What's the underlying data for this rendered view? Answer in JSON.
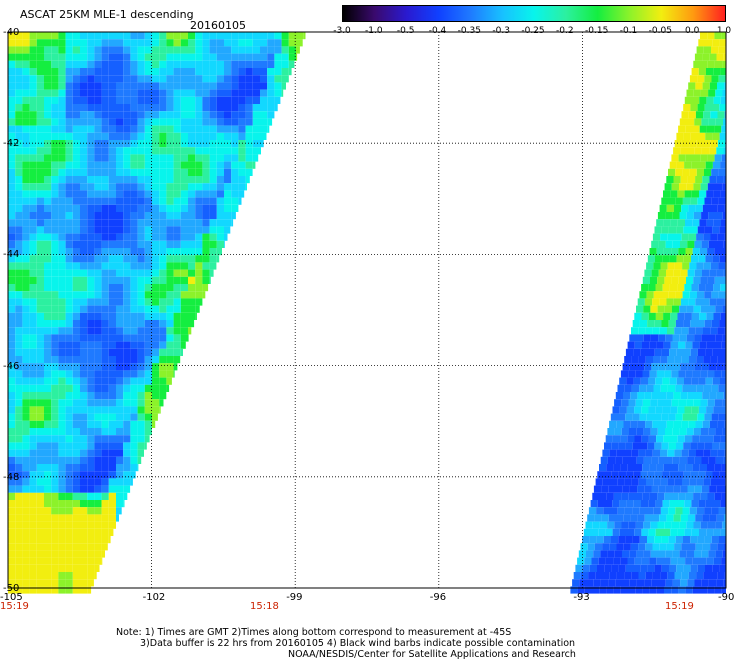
{
  "header": {
    "title": "ASCAT 25KM MLE-1 descending",
    "date": "20160105"
  },
  "colorbar": {
    "labels": [
      "-3.0",
      "-1.0",
      "-0.5",
      "-0.4",
      "-0.35",
      "-0.3",
      "-0.25",
      "-0.2",
      "-0.15",
      "-0.1",
      "-0.05",
      "0.0",
      "1.0"
    ],
    "colors": [
      "#000000",
      "#3a0a6e",
      "#2a1ad0",
      "#1040ff",
      "#1f7aff",
      "#18c0ff",
      "#08f4ec",
      "#2cf0a0",
      "#14ee40",
      "#8cf22a",
      "#f2ee10",
      "#ff9a10",
      "#ff2020"
    ]
  },
  "axes": {
    "lat_labels": [
      "-40",
      "-42",
      "-44",
      "-46",
      "-48",
      "-50"
    ],
    "lon_labels": [
      "-105",
      "-102",
      "-99",
      "-96",
      "-93",
      "-90"
    ],
    "time_labels": [
      "15:19",
      "15:18",
      "15:19"
    ]
  },
  "map": {
    "lon_range": [
      -105,
      -90
    ],
    "lat_range": [
      -50,
      -40
    ],
    "grid": true,
    "swaths": [
      {
        "name": "west",
        "lon_west": -105
      },
      {
        "name": "east",
        "lon_east": -90
      }
    ]
  },
  "notes": {
    "line1": "Note: 1) Times are GMT 2)Times along bottom correspond to measurement at -45S",
    "line2": "3)Data buffer is 22 hrs from 20160105 4) Black wind barbs indicate possible contamination",
    "line3": "NOAA/NESDIS/Center for Satellite Applications and Research"
  }
}
